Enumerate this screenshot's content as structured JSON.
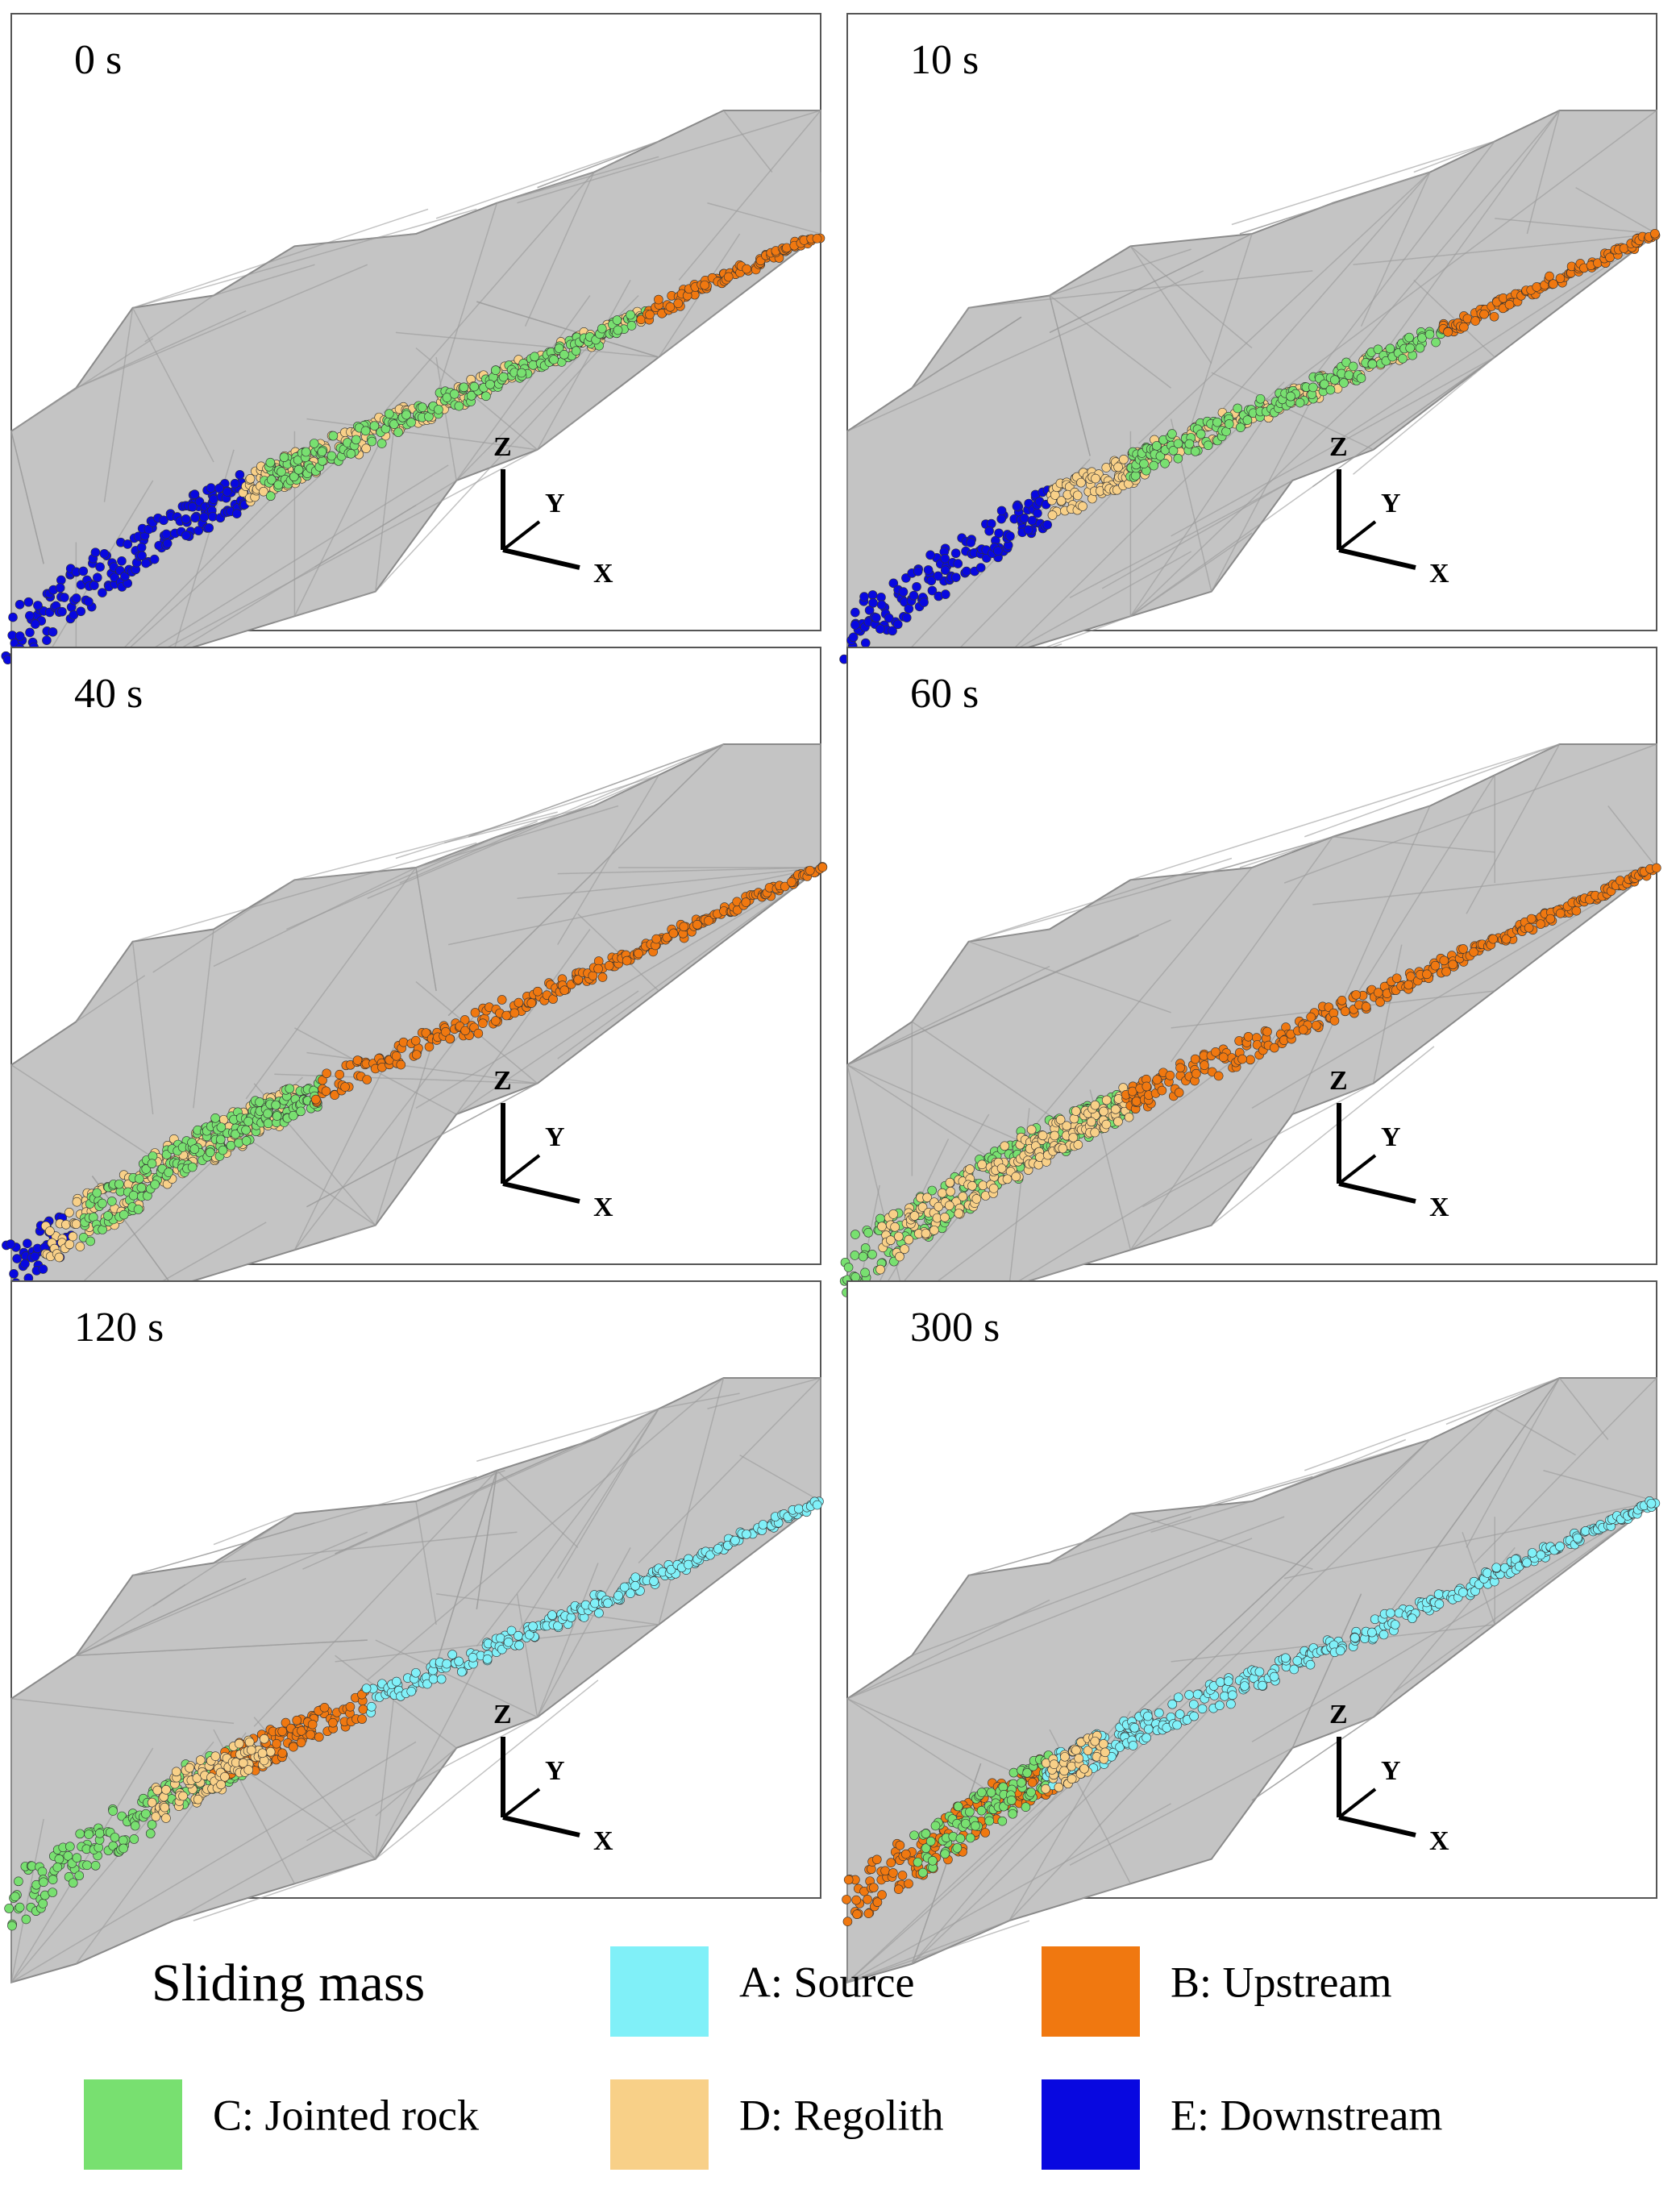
{
  "panels": [
    {
      "label": "0 s"
    },
    {
      "label": "10 s"
    },
    {
      "label": "40 s"
    },
    {
      "label": "60 s"
    },
    {
      "label": "120 s"
    },
    {
      "label": "300 s"
    }
  ],
  "axis_labels": [
    "Z",
    "Y",
    "X"
  ],
  "legend": {
    "title": "Sliding mass",
    "items": [
      {
        "label": "A: Source",
        "color": "#80f0f8"
      },
      {
        "label": "B: Upstream",
        "color": "#f07810"
      },
      {
        "label": "C: Jointed rock",
        "color": "#78e070"
      },
      {
        "label": "D: Regolith",
        "color": "#f8d088"
      },
      {
        "label": "E: Downstream",
        "color": "#0808e0"
      }
    ]
  }
}
